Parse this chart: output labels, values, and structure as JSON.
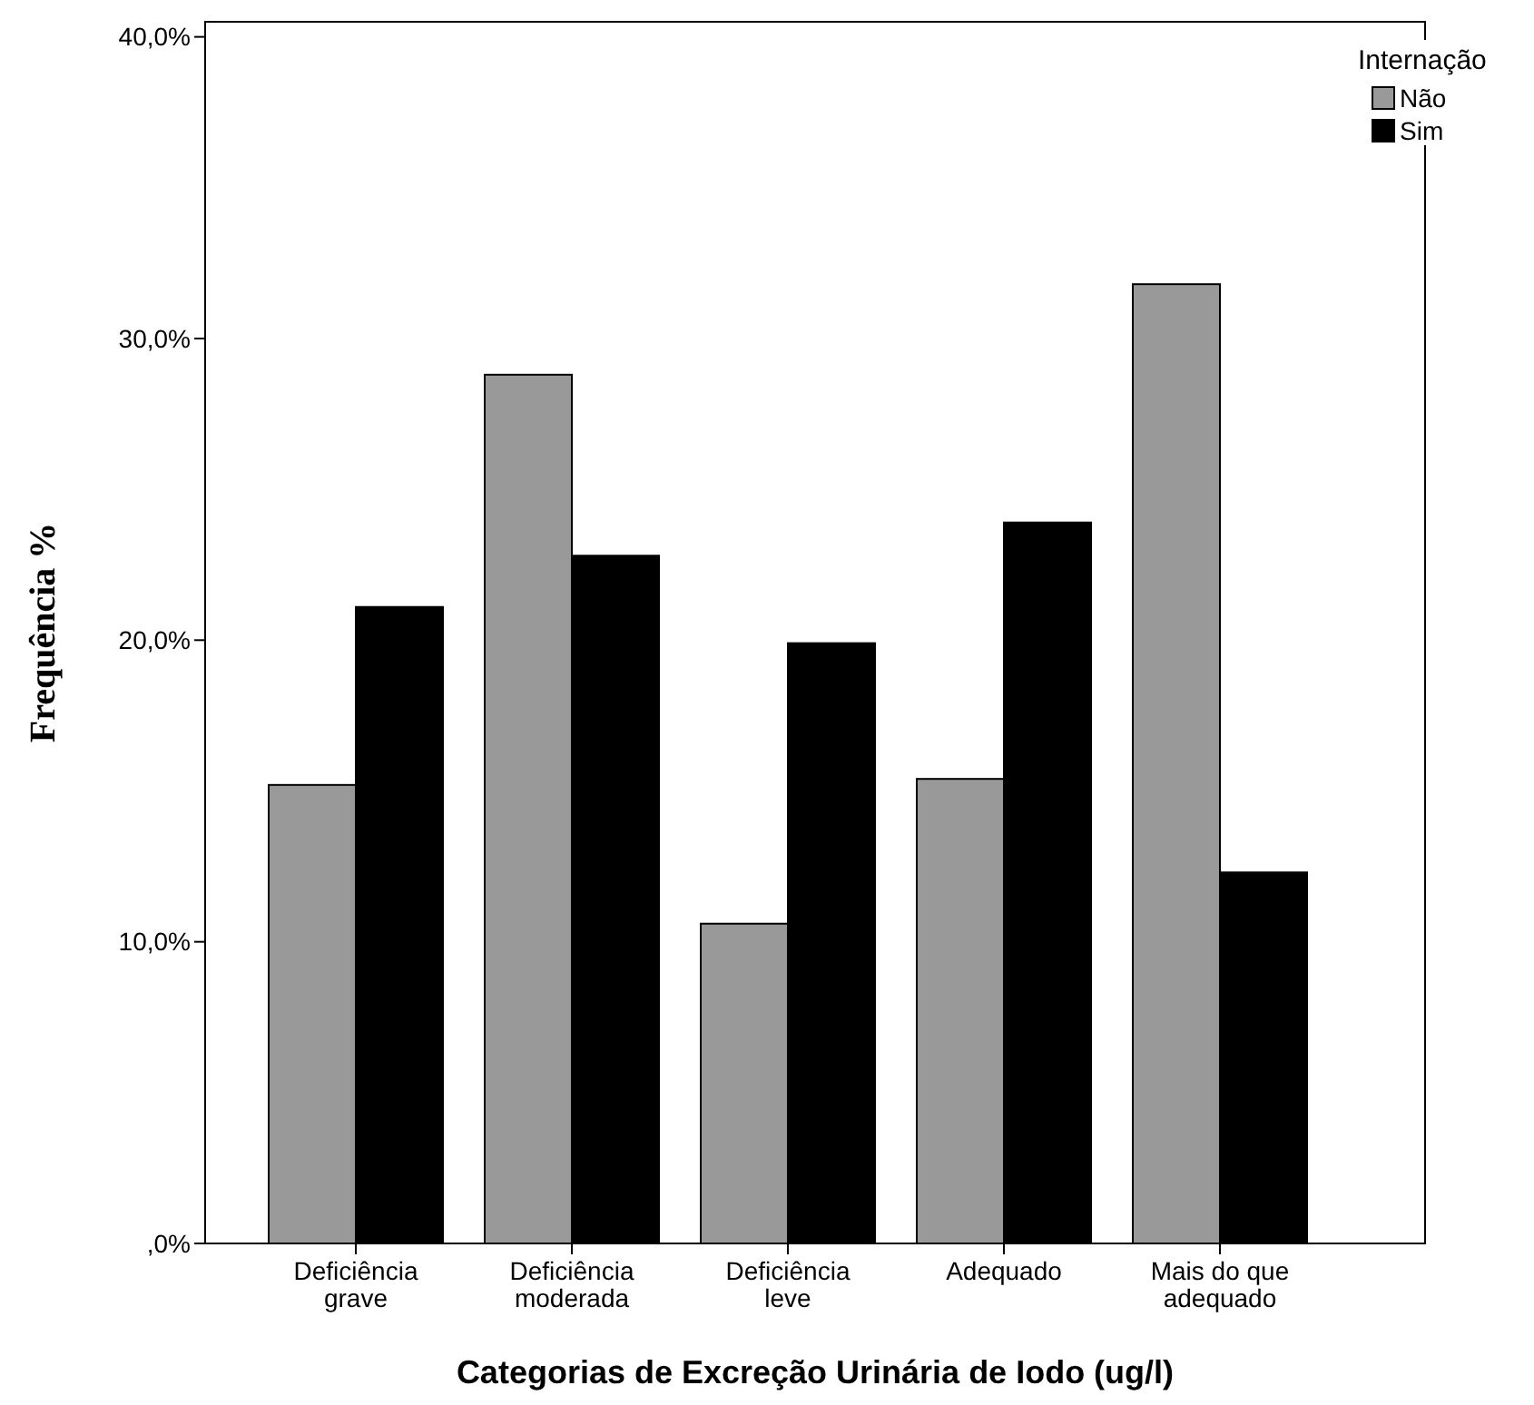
{
  "chart_data": {
    "type": "bar",
    "xlabel": "Categorias de Excreção Urinária de Iodo (ug/l)",
    "ylabel": "Frequência %",
    "legend_title": "Internação",
    "categories": [
      "Deficiência grave",
      "Deficiência moderada",
      "Deficiência leve",
      "Adequado",
      "Mais do que adequado"
    ],
    "series": [
      {
        "name": "Não",
        "color": "#999999",
        "values": [
          15.2,
          28.8,
          10.6,
          15.4,
          31.8
        ]
      },
      {
        "name": "Sim",
        "color": "#000000",
        "values": [
          21.1,
          22.8,
          19.9,
          23.9,
          12.3
        ]
      }
    ],
    "ylim": [
      0,
      40.5
    ],
    "yticks": [
      {
        "value": 0,
        "label": ",0%"
      },
      {
        "value": 10,
        "label": "10,0%"
      },
      {
        "value": 20,
        "label": "20,0%"
      },
      {
        "value": 30,
        "label": "30,0%"
      },
      {
        "value": 40,
        "label": "40,0%"
      }
    ],
    "grid": false,
    "legend": "top right"
  }
}
